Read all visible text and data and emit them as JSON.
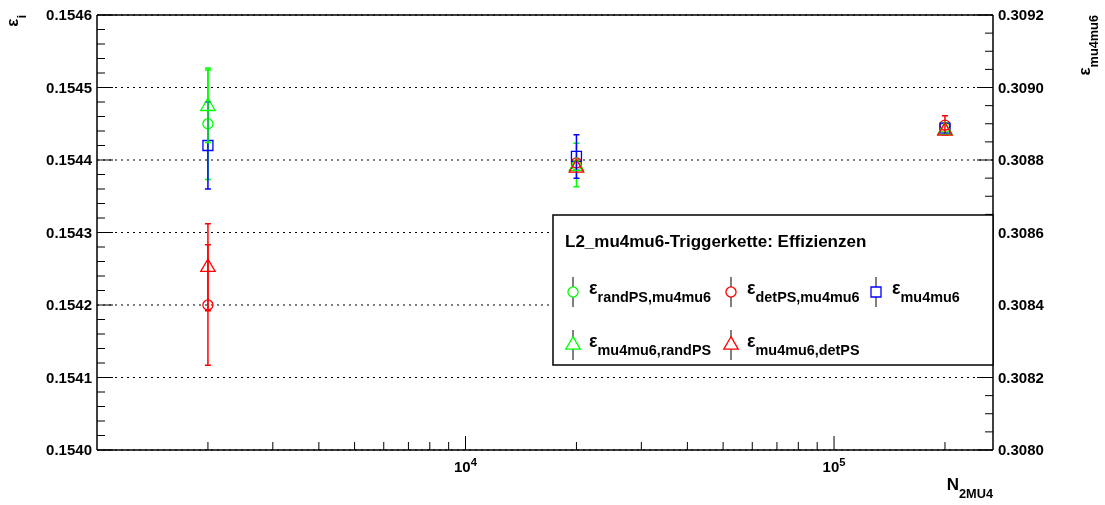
{
  "chart_data": {
    "type": "scatter",
    "xlabel": "N$_{2MU4}$",
    "ylabel": "ε$_{i}$",
    "y2label": "ε$_{mu4mu6}$",
    "legend_title": "L2_mu4mu6-Triggerkette: Effizienzen",
    "log": "x",
    "grid": "y",
    "line_style": "dotted",
    "legend": "right",
    "x": [
      2000,
      20000,
      200000
    ],
    "xlim": [
      1000,
      270000
    ],
    "xticks": [
      {
        "value": 2000,
        "label": null
      },
      {
        "value": 3000,
        "label": null
      },
      {
        "value": 4000,
        "label": null
      },
      {
        "value": 5000,
        "label": null
      },
      {
        "value": 6000,
        "label": null
      },
      {
        "value": 7000,
        "label": null
      },
      {
        "value": 8000,
        "label": null
      },
      {
        "value": 9000,
        "label": null
      },
      {
        "value": 10000,
        "label": "10$^{4}$"
      },
      {
        "value": 20000,
        "label": null
      },
      {
        "value": 30000,
        "label": null
      },
      {
        "value": 40000,
        "label": null
      },
      {
        "value": 50000,
        "label": null
      },
      {
        "value": 60000,
        "label": null
      },
      {
        "value": 70000,
        "label": null
      },
      {
        "value": 80000,
        "label": null
      },
      {
        "value": 90000,
        "label": null
      },
      {
        "value": 100000,
        "label": "10$^{5}$"
      },
      {
        "value": 200000,
        "label": null
      }
    ],
    "ylim": [
      0.154,
      0.1546
    ],
    "yticks": [
      {
        "value": 0.154,
        "label": "0.1540"
      },
      {
        "value": 0.1541,
        "label": "0.1541"
      },
      {
        "value": 0.1542,
        "label": "0.1542"
      },
      {
        "value": 0.1543,
        "label": "0.1543"
      },
      {
        "value": 0.1544,
        "label": "0.1544"
      },
      {
        "value": 0.1545,
        "label": "0.1545"
      },
      {
        "value": 0.1546,
        "label": "0.1546"
      }
    ],
    "y2lim": [
      0.308,
      0.3092
    ],
    "y2ticks": [
      {
        "value": 0.308,
        "label": "0.3080"
      },
      {
        "value": 0.3082,
        "label": "0.3082"
      },
      {
        "value": 0.3084,
        "label": "0.3084"
      },
      {
        "value": 0.3086,
        "label": "0.3086"
      },
      {
        "value": 0.3088,
        "label": "0.3088"
      },
      {
        "value": 0.309,
        "label": "0.3090"
      },
      {
        "value": 0.3092,
        "label": "0.3092"
      }
    ],
    "series": [
      {
        "name": "ε$_{randPS,mu4mu6}$",
        "color": "#00ff00",
        "marker": "circle",
        "values": [
          0.15445,
          0.154393,
          0.154445
        ],
        "errors": [
          7.7e-05,
          3e-05,
          null
        ]
      },
      {
        "name": "ε$_{detPS,mu4mu6}$",
        "color": "#ff0000",
        "marker": "circle",
        "values": [
          0.1542,
          0.154396,
          0.154448
        ],
        "errors": [
          8.3e-05,
          null,
          1.3e-05
        ]
      },
      {
        "name": "ε$_{mu4mu6}$",
        "color": "#0000ff",
        "marker": "square",
        "axis": "y2",
        "values": [
          0.30884,
          0.30881,
          0.308888
        ],
        "errors": [
          0.00012,
          6e-05,
          null
        ]
      },
      {
        "name": "ε$_{mu4mu6,randPS}$",
        "color": "#00ff00",
        "marker": "triangle",
        "values": [
          0.154474,
          0.154391,
          0.154441
        ],
        "errors": [
          5e-05,
          null,
          null
        ]
      },
      {
        "name": "ε$_{mu4mu6,detPS}$",
        "color": "#ff0000",
        "marker": "triangle",
        "values": [
          0.154252,
          0.154389,
          0.15444
        ],
        "errors": [
          6e-05,
          null,
          null
        ]
      }
    ]
  }
}
